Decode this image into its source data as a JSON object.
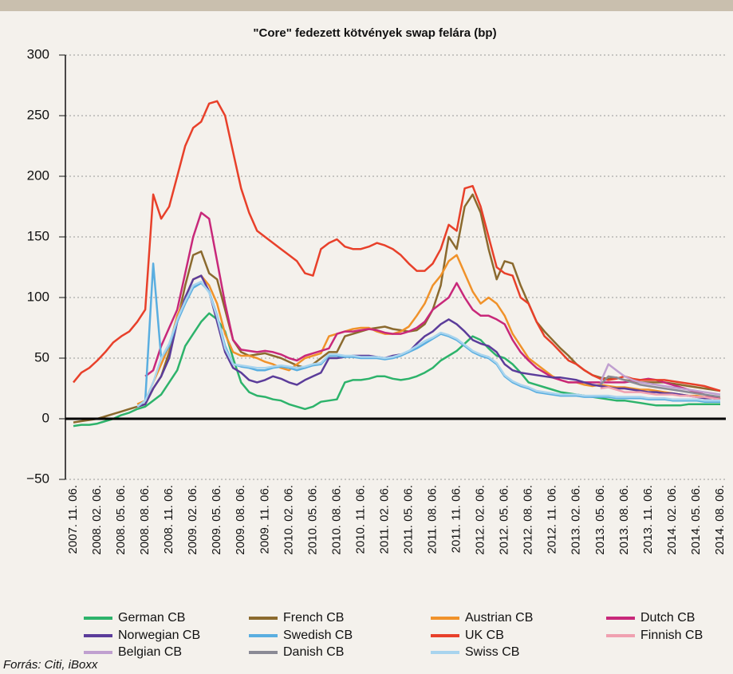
{
  "chart_data": {
    "type": "line",
    "title": "\"Core\" fedezett kötvények swap felára (bp)",
    "source": "Forrás: Citi, iBoxx",
    "x": [
      "2007. 11. 06.",
      "2007. 12. 06.",
      "2008. 01. 06.",
      "2008. 02. 06.",
      "2008. 03. 06.",
      "2008. 04. 06.",
      "2008. 05. 06.",
      "2008. 06. 06.",
      "2008. 07. 06.",
      "2008. 08. 06.",
      "2008. 09. 06.",
      "2008. 10. 06.",
      "2008. 11. 06.",
      "2008. 12. 06.",
      "2009. 01. 06.",
      "2009. 02. 06.",
      "2009. 03. 06.",
      "2009. 04. 06.",
      "2009. 05. 06.",
      "2009. 06. 06.",
      "2009. 07. 06.",
      "2009. 08. 06.",
      "2009. 09. 06.",
      "2009. 10. 06.",
      "2009. 11. 06.",
      "2009. 12. 06.",
      "2010. 01. 06.",
      "2010. 02. 06.",
      "2010. 03. 06.",
      "2010. 04. 06.",
      "2010. 05. 06.",
      "2010. 06. 06.",
      "2010. 07. 06.",
      "2010. 08. 06.",
      "2010. 09. 06.",
      "2010. 10. 06.",
      "2010. 11. 06.",
      "2010. 12. 06.",
      "2011. 01. 06.",
      "2011. 02. 06.",
      "2011. 03. 06.",
      "2011. 04. 06.",
      "2011. 05. 06.",
      "2011. 06. 06.",
      "2011. 07. 06.",
      "2011. 08. 06.",
      "2011. 09. 06.",
      "2011. 10. 06.",
      "2011. 11. 06.",
      "2011. 12. 06.",
      "2012. 01. 06.",
      "2012. 02. 06.",
      "2012. 03. 06.",
      "2012. 04. 06.",
      "2012. 05. 06.",
      "2012. 06. 06.",
      "2012. 07. 06.",
      "2012. 08. 06.",
      "2012. 09. 06.",
      "2012. 10. 06.",
      "2012. 11. 06.",
      "2012. 12. 06.",
      "2013. 01. 06.",
      "2013. 02. 06.",
      "2013. 03. 06.",
      "2013. 04. 06.",
      "2013. 05. 06.",
      "2013. 06. 06.",
      "2013. 07. 06.",
      "2013. 08. 06.",
      "2013. 09. 06.",
      "2013. 10. 06.",
      "2013. 11. 06.",
      "2013. 12. 06.",
      "2014. 01. 06.",
      "2014. 02. 06.",
      "2014. 03. 06.",
      "2014. 04. 06.",
      "2014. 05. 06.",
      "2014. 06. 06.",
      "2014. 07. 06.",
      "2014. 08. 06."
    ],
    "xticks": [
      "2007. 11. 06.",
      "2008. 02. 06.",
      "2008. 05. 06.",
      "2008. 08. 06.",
      "2008. 11. 06.",
      "2009. 02. 06.",
      "2009. 05. 06.",
      "2009. 08. 06.",
      "2009. 11. 06.",
      "2010. 02. 06.",
      "2010. 05. 06.",
      "2010. 08. 06.",
      "2010. 11. 06.",
      "2011. 02. 06.",
      "2011. 05. 06.",
      "2011. 08. 06.",
      "2011. 11. 06.",
      "2012. 02. 06.",
      "2012. 05. 06.",
      "2012. 08. 06.",
      "2012. 11. 06.",
      "2013. 02. 06.",
      "2013. 05. 06.",
      "2013. 08. 06.",
      "2013. 11. 06.",
      "2014. 02. 06.",
      "2014. 05. 06.",
      "2014. 08. 06."
    ],
    "ylim": [
      -50,
      300
    ],
    "yticks": [
      {
        "value": -50,
        "label": "−50"
      },
      0,
      50,
      100,
      150,
      200,
      250,
      300
    ],
    "grid": true,
    "series": [
      {
        "name": "German CB",
        "color": "#2db36b",
        "values": [
          -6,
          -5,
          -5,
          -4,
          -2,
          0,
          3,
          5,
          8,
          10,
          15,
          20,
          30,
          40,
          60,
          70,
          80,
          87,
          82,
          72,
          50,
          30,
          22,
          19,
          18,
          16,
          15,
          12,
          10,
          8,
          10,
          14,
          15,
          16,
          30,
          32,
          32,
          33,
          35,
          35,
          33,
          32,
          33,
          35,
          38,
          42,
          48,
          52,
          56,
          62,
          68,
          65,
          58,
          52,
          50,
          45,
          38,
          30,
          28,
          26,
          24,
          22,
          21,
          20,
          19,
          18,
          17,
          16,
          15,
          15,
          14,
          13,
          12,
          11,
          11,
          11,
          11,
          12,
          12,
          12,
          12,
          12
        ]
      },
      {
        "name": "French CB",
        "color": "#8b6a2e",
        "values": [
          -3,
          -2,
          -1,
          0,
          2,
          4,
          6,
          8,
          10,
          12,
          25,
          35,
          55,
          80,
          110,
          135,
          138,
          120,
          115,
          90,
          65,
          55,
          52,
          53,
          54,
          52,
          50,
          47,
          44,
          42,
          45,
          50,
          55,
          55,
          68,
          70,
          72,
          74,
          75,
          76,
          74,
          73,
          72,
          73,
          78,
          90,
          110,
          150,
          140,
          175,
          185,
          170,
          140,
          115,
          130,
          128,
          110,
          95,
          80,
          72,
          65,
          58,
          52,
          45,
          40,
          36,
          34,
          33,
          34,
          32,
          31,
          30,
          30,
          30,
          30,
          29,
          28,
          27,
          26,
          25,
          24,
          23
        ]
      },
      {
        "name": "Austrian CB",
        "color": "#f0922a",
        "values": [
          null,
          null,
          null,
          null,
          null,
          null,
          null,
          null,
          12,
          15,
          30,
          45,
          60,
          85,
          100,
          115,
          118,
          110,
          95,
          70,
          55,
          52,
          52,
          50,
          47,
          45,
          42,
          40,
          45,
          50,
          52,
          54,
          68,
          70,
          72,
          74,
          75,
          75,
          72,
          70,
          70,
          72,
          76,
          85,
          95,
          110,
          118,
          130,
          135,
          120,
          105,
          95,
          100,
          95,
          85,
          70,
          60,
          50,
          45,
          40,
          35,
          32,
          30,
          30,
          28,
          27,
          28,
          27,
          26,
          26,
          25,
          24,
          24,
          23,
          22,
          21,
          20,
          19,
          19,
          18,
          18,
          17
        ]
      },
      {
        "name": "Dutch CB",
        "color": "#c8287a",
        "values": [
          null,
          null,
          null,
          null,
          null,
          null,
          null,
          null,
          null,
          35,
          40,
          60,
          75,
          90,
          120,
          150,
          170,
          165,
          130,
          95,
          65,
          57,
          56,
          55,
          56,
          55,
          53,
          50,
          48,
          52,
          54,
          56,
          58,
          70,
          72,
          72,
          73,
          74,
          73,
          71,
          70,
          70,
          72,
          75,
          80,
          90,
          95,
          100,
          112,
          100,
          90,
          85,
          85,
          82,
          78,
          65,
          55,
          48,
          42,
          38,
          34,
          32,
          30,
          30,
          30,
          30,
          30,
          30,
          30,
          30,
          31,
          32,
          33,
          32,
          30,
          28,
          26,
          24,
          22,
          20,
          18,
          16
        ]
      },
      {
        "name": "Norwegian CB",
        "color": "#5b3c9a",
        "values": [
          null,
          null,
          null,
          null,
          null,
          null,
          null,
          null,
          10,
          12,
          25,
          35,
          50,
          80,
          100,
          115,
          118,
          105,
          80,
          55,
          42,
          38,
          32,
          30,
          32,
          35,
          33,
          30,
          28,
          32,
          35,
          38,
          50,
          50,
          51,
          52,
          52,
          52,
          51,
          50,
          52,
          53,
          55,
          62,
          68,
          72,
          78,
          82,
          78,
          72,
          65,
          62,
          60,
          55,
          45,
          40,
          38,
          37,
          36,
          35,
          34,
          34,
          33,
          32,
          30,
          28,
          27,
          26,
          25,
          25,
          24,
          23,
          22,
          22,
          21,
          21,
          20,
          19,
          18,
          17,
          17,
          16
        ]
      },
      {
        "name": "Swedish CB",
        "color": "#5aaee0",
        "values": [
          null,
          null,
          null,
          null,
          null,
          null,
          null,
          null,
          10,
          15,
          128,
          50,
          60,
          80,
          95,
          108,
          112,
          105,
          85,
          60,
          45,
          43,
          42,
          40,
          40,
          42,
          43,
          42,
          40,
          42,
          44,
          45,
          52,
          52,
          51,
          51,
          50,
          50,
          50,
          49,
          50,
          52,
          55,
          58,
          62,
          66,
          70,
          68,
          65,
          60,
          55,
          52,
          50,
          45,
          35,
          30,
          27,
          25,
          22,
          21,
          20,
          19,
          19,
          19,
          18,
          18,
          18,
          18,
          17,
          17,
          17,
          17,
          16,
          16,
          16,
          15,
          15,
          15,
          15,
          14,
          14,
          14
        ]
      },
      {
        "name": "UK CB",
        "color": "#e8402a",
        "values": [
          30,
          38,
          42,
          48,
          55,
          63,
          68,
          72,
          80,
          90,
          185,
          165,
          175,
          200,
          225,
          240,
          245,
          260,
          262,
          250,
          220,
          190,
          170,
          155,
          150,
          145,
          140,
          135,
          130,
          120,
          118,
          140,
          145,
          148,
          142,
          140,
          140,
          142,
          145,
          143,
          140,
          135,
          128,
          122,
          122,
          128,
          140,
          160,
          155,
          190,
          192,
          175,
          150,
          125,
          120,
          118,
          100,
          95,
          80,
          68,
          62,
          55,
          48,
          45,
          40,
          36,
          33,
          32,
          33,
          35,
          33,
          32,
          32,
          32,
          32,
          31,
          30,
          29,
          28,
          27,
          25,
          23
        ]
      },
      {
        "name": "Finnish CB",
        "color": "#f0a0b0",
        "values": [
          null,
          null,
          null,
          null,
          null,
          null,
          null,
          null,
          null,
          null,
          null,
          null,
          null,
          null,
          null,
          null,
          null,
          null,
          null,
          null,
          null,
          null,
          null,
          null,
          null,
          null,
          null,
          null,
          null,
          null,
          null,
          null,
          null,
          null,
          null,
          null,
          null,
          null,
          null,
          null,
          null,
          null,
          null,
          null,
          null,
          null,
          null,
          null,
          null,
          null,
          null,
          null,
          null,
          null,
          null,
          null,
          null,
          null,
          null,
          null,
          null,
          null,
          null,
          null,
          null,
          null,
          25,
          26,
          24,
          22,
          22,
          22,
          21,
          20,
          20,
          20,
          19,
          19,
          18,
          18,
          17,
          16
        ]
      },
      {
        "name": "Belgian CB",
        "color": "#c0a0d0",
        "values": [
          null,
          null,
          null,
          null,
          null,
          null,
          null,
          null,
          null,
          null,
          null,
          null,
          null,
          null,
          null,
          null,
          null,
          null,
          null,
          null,
          null,
          null,
          null,
          null,
          null,
          null,
          null,
          null,
          null,
          null,
          null,
          null,
          null,
          null,
          null,
          null,
          null,
          null,
          null,
          null,
          null,
          null,
          null,
          null,
          null,
          null,
          null,
          null,
          null,
          null,
          null,
          null,
          null,
          null,
          null,
          null,
          null,
          null,
          null,
          null,
          null,
          null,
          null,
          null,
          null,
          null,
          30,
          45,
          40,
          35,
          32,
          30,
          29,
          28,
          27,
          26,
          25,
          24,
          23,
          22,
          21,
          20
        ]
      },
      {
        "name": "Danish CB",
        "color": "#8a8a95",
        "values": [
          null,
          null,
          null,
          null,
          null,
          null,
          null,
          null,
          null,
          null,
          null,
          null,
          null,
          null,
          null,
          null,
          null,
          null,
          null,
          null,
          null,
          null,
          null,
          null,
          null,
          null,
          null,
          null,
          null,
          null,
          null,
          null,
          null,
          null,
          null,
          null,
          null,
          null,
          null,
          null,
          null,
          null,
          null,
          null,
          null,
          null,
          null,
          null,
          null,
          null,
          null,
          null,
          null,
          null,
          null,
          null,
          null,
          null,
          null,
          null,
          null,
          null,
          null,
          null,
          null,
          null,
          28,
          35,
          34,
          32,
          30,
          28,
          27,
          26,
          25,
          24,
          23,
          22,
          21,
          20,
          19,
          18
        ]
      },
      {
        "name": "Swiss CB",
        "color": "#a8d4ee",
        "values": [
          null,
          null,
          null,
          null,
          null,
          null,
          null,
          null,
          10,
          15,
          30,
          50,
          62,
          82,
          97,
          110,
          113,
          104,
          84,
          58,
          45,
          44,
          43,
          42,
          42,
          43,
          44,
          43,
          42,
          43,
          45,
          46,
          53,
          53,
          52,
          52,
          51,
          51,
          51,
          50,
          51,
          53,
          56,
          60,
          64,
          67,
          71,
          69,
          66,
          61,
          56,
          53,
          51,
          46,
          36,
          31,
          28,
          26,
          23,
          22,
          21,
          20,
          20,
          20,
          19,
          19,
          19,
          19,
          18,
          18,
          18,
          18,
          17,
          17,
          17,
          16,
          16,
          16,
          16,
          15,
          15,
          15
        ]
      }
    ]
  }
}
